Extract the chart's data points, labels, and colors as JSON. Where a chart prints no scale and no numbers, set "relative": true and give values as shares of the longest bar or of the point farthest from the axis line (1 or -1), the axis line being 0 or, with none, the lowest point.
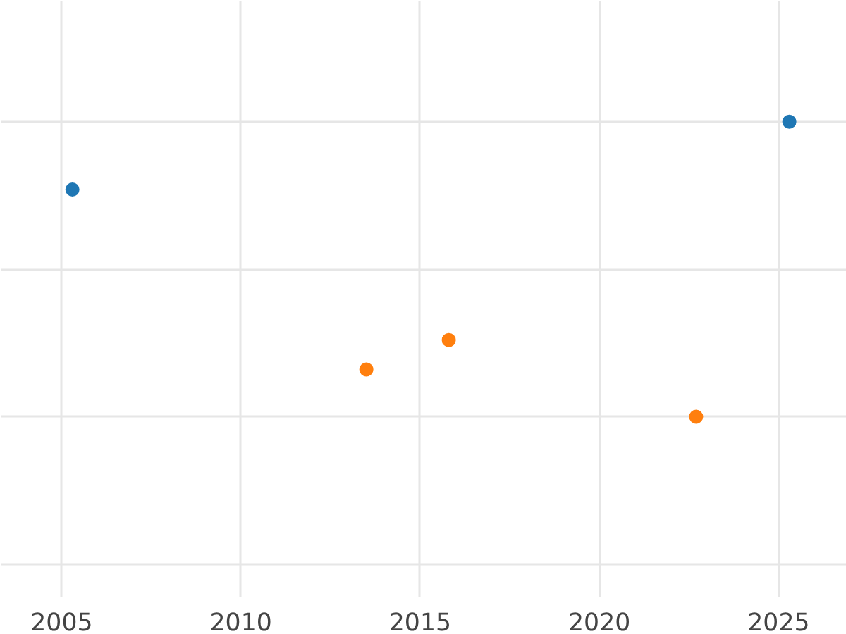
{
  "chart_data": {
    "type": "scatter",
    "relative": true,
    "xlim": [
      2003.3,
      2026.9
    ],
    "xticks": [
      2005,
      2010,
      2015,
      2020,
      2025
    ],
    "grid": true,
    "marker": "circle",
    "series": [
      {
        "color": "#1f77b4",
        "x": [
          2005.3,
          2025.3
        ],
        "values": [
          0.77,
          1
        ]
      },
      {
        "color": "#ff7f0e",
        "x": [
          2013.5,
          2015.8,
          2022.7
        ],
        "values": [
          0.16,
          0.26,
          0
        ]
      }
    ]
  }
}
